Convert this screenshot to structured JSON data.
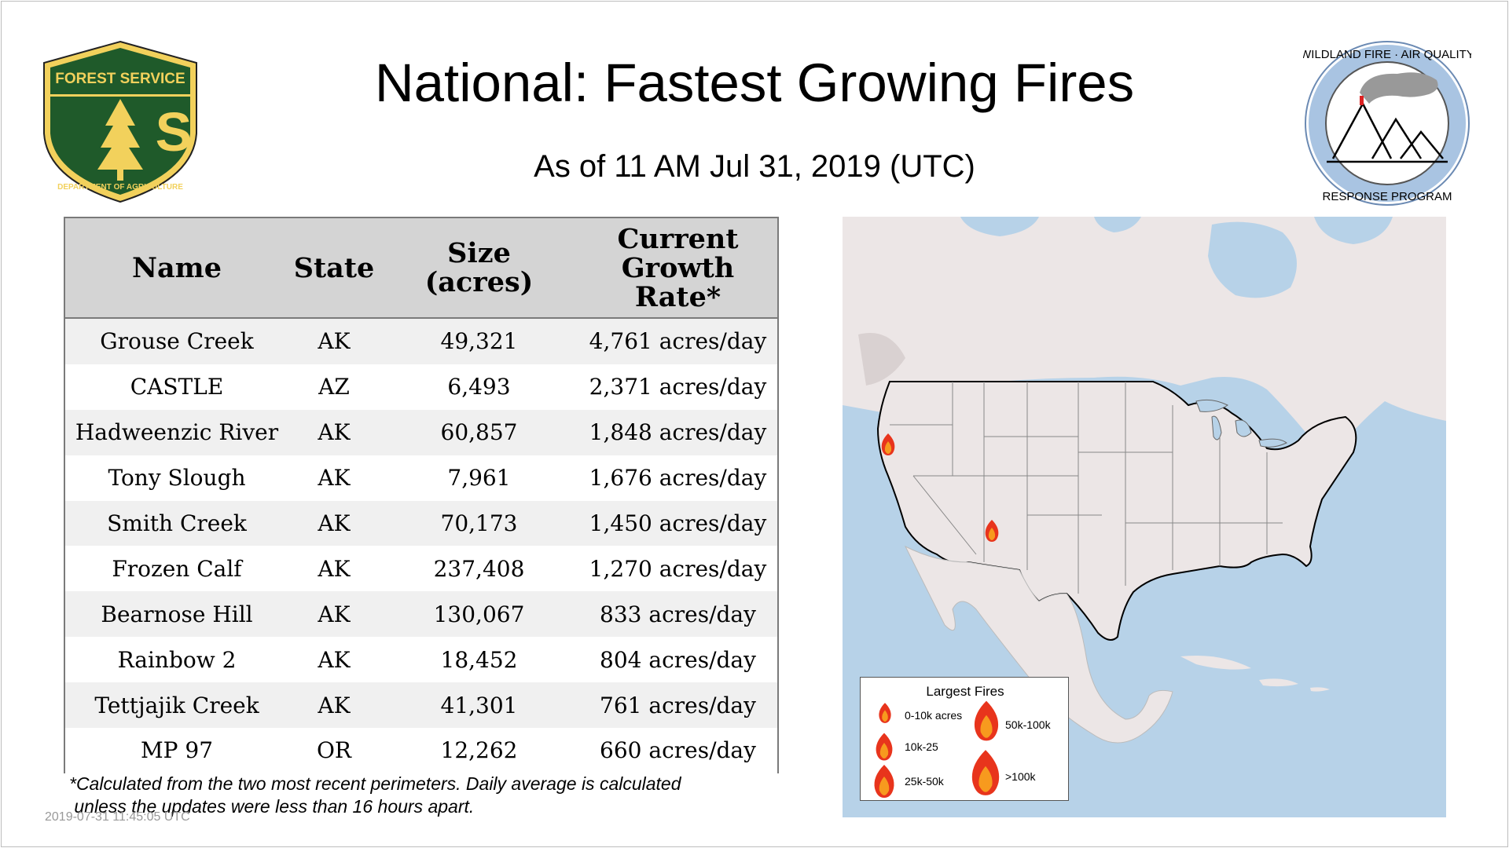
{
  "header": {
    "title": "National: Fastest Growing Fires",
    "subtitle": "As of 11 AM Jul 31, 2019 (UTC)"
  },
  "logos": {
    "left": {
      "top_text": "FOREST SERVICE",
      "letters": "U S",
      "bottom_text": "DEPARTMENT OF AGRICULTURE"
    },
    "right": {
      "top_text": "WILDLAND FIRE · AIR QUALITY",
      "bottom_text": "RESPONSE PROGRAM"
    }
  },
  "table": {
    "headers": {
      "name": "Name",
      "state": "State",
      "size_line1": "Size",
      "size_line2": "(acres)",
      "rate_line1": "Current",
      "rate_line2": "Growth",
      "rate_line3": "Rate*"
    },
    "rows": [
      {
        "name": "Grouse Creek",
        "state": "AK",
        "size": "49,321",
        "rate": "4,761 acres/day"
      },
      {
        "name": "CASTLE",
        "state": "AZ",
        "size": "6,493",
        "rate": "2,371 acres/day"
      },
      {
        "name": "Hadweenzic River",
        "state": "AK",
        "size": "60,857",
        "rate": "1,848 acres/day"
      },
      {
        "name": "Tony Slough",
        "state": "AK",
        "size": "7,961",
        "rate": "1,676 acres/day"
      },
      {
        "name": "Smith Creek",
        "state": "AK",
        "size": "70,173",
        "rate": "1,450 acres/day"
      },
      {
        "name": "Frozen Calf",
        "state": "AK",
        "size": "237,408",
        "rate": "1,270 acres/day"
      },
      {
        "name": "Bearnose Hill",
        "state": "AK",
        "size": "130,067",
        "rate": "833 acres/day"
      },
      {
        "name": "Rainbow 2",
        "state": "AK",
        "size": "18,452",
        "rate": "804 acres/day"
      },
      {
        "name": "Tettjajik Creek",
        "state": "AK",
        "size": "41,301",
        "rate": "761 acres/day"
      },
      {
        "name": "MP 97",
        "state": "OR",
        "size": "12,262",
        "rate": "660 acres/day"
      }
    ]
  },
  "footnote": {
    "line1": "*Calculated from the two most recent perimeters. Daily average is calculated",
    "line2": " unless the updates were less than 16 hours apart."
  },
  "timestamp": "2019-07-31 11:45:05 UTC",
  "legend": {
    "title": "Largest Fires",
    "items": {
      "size1": "0-10k acres",
      "size2": "10k-25",
      "size3": "25k-50k",
      "size4": "50k-100k",
      "size5": ">100k"
    }
  },
  "colors": {
    "usfs_green": "#1f5a2a",
    "usfs_gold": "#f2d15c",
    "map_water": "#b7d2e8",
    "map_land": "#ece6e6",
    "table_header_bg": "#d4d4d4",
    "fire_red": "#e8341c",
    "fire_orange": "#f79a1e"
  }
}
